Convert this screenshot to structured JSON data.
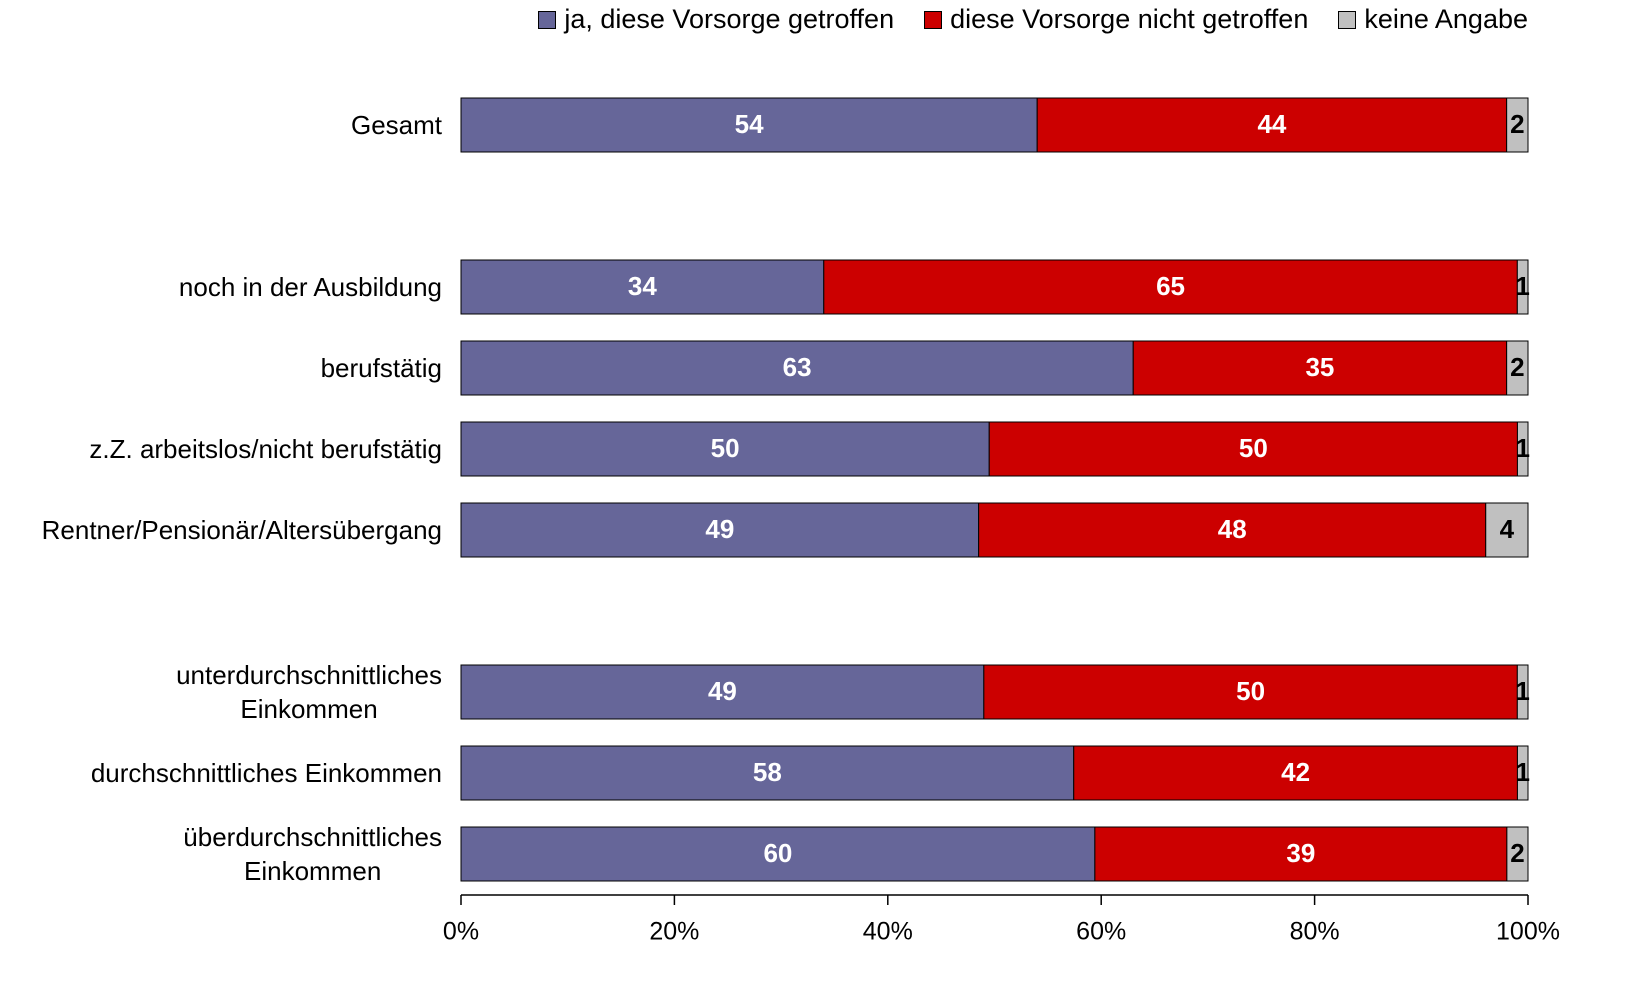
{
  "chart_data": {
    "type": "bar",
    "orientation": "horizontal",
    "stacking": "percent",
    "categories": [
      "Gesamt",
      null,
      "noch in der Ausbildung",
      "berufstätig",
      "z.Z. arbeitslos/nicht berufstätig",
      "Rentner/Pensionär/Altersübergang",
      null,
      "unterdurchschnittliches\nEinkommen",
      "durchschnittliches Einkommen",
      "überdurchschnittliches\nEinkommen"
    ],
    "series": [
      {
        "name": "ja, diese Vorsorge getroffen",
        "color": "#666699",
        "label_color": "#ffffff",
        "values": [
          54,
          null,
          34,
          63,
          50,
          49,
          null,
          49,
          58,
          60
        ]
      },
      {
        "name": "diese Vorsorge nicht getroffen",
        "color": "#cc0000",
        "label_color": "#ffffff",
        "values": [
          44,
          null,
          65,
          35,
          50,
          48,
          null,
          50,
          42,
          39
        ]
      },
      {
        "name": "keine Angabe",
        "color": "#c0c0c0",
        "label_color": "#000000",
        "values": [
          2,
          null,
          1,
          2,
          1,
          4,
          null,
          1,
          1,
          2
        ]
      }
    ],
    "xlim": [
      0,
      100
    ],
    "xticks": [
      {
        "value": 0,
        "label": "0%"
      },
      {
        "value": 20,
        "label": "20%"
      },
      {
        "value": 40,
        "label": "40%"
      },
      {
        "value": 60,
        "label": "60%"
      },
      {
        "value": 80,
        "label": "80%"
      },
      {
        "value": 100,
        "label": "100%"
      }
    ],
    "legend": "top"
  }
}
